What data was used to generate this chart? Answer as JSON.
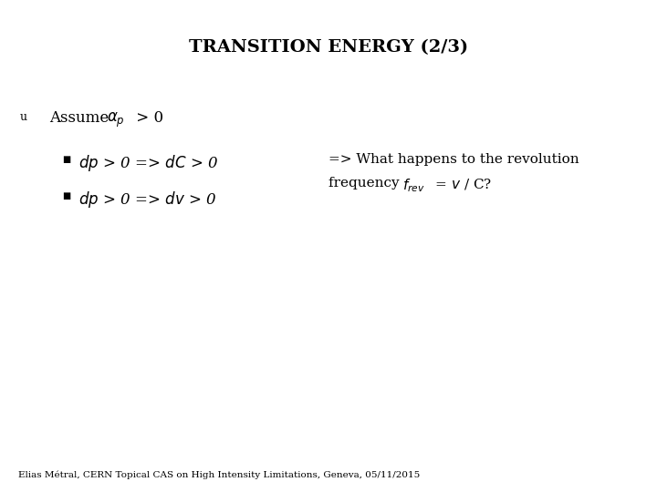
{
  "title": "TRANSITION ENERGY (2/3)",
  "title_fontsize": 14,
  "background_color": "#ffffff",
  "text_color": "#000000",
  "footer": "Elias Métral, CERN Topical CAS on High Intensity Limitations, Geneva, 05/11/2015",
  "footer_fontsize": 7.5
}
